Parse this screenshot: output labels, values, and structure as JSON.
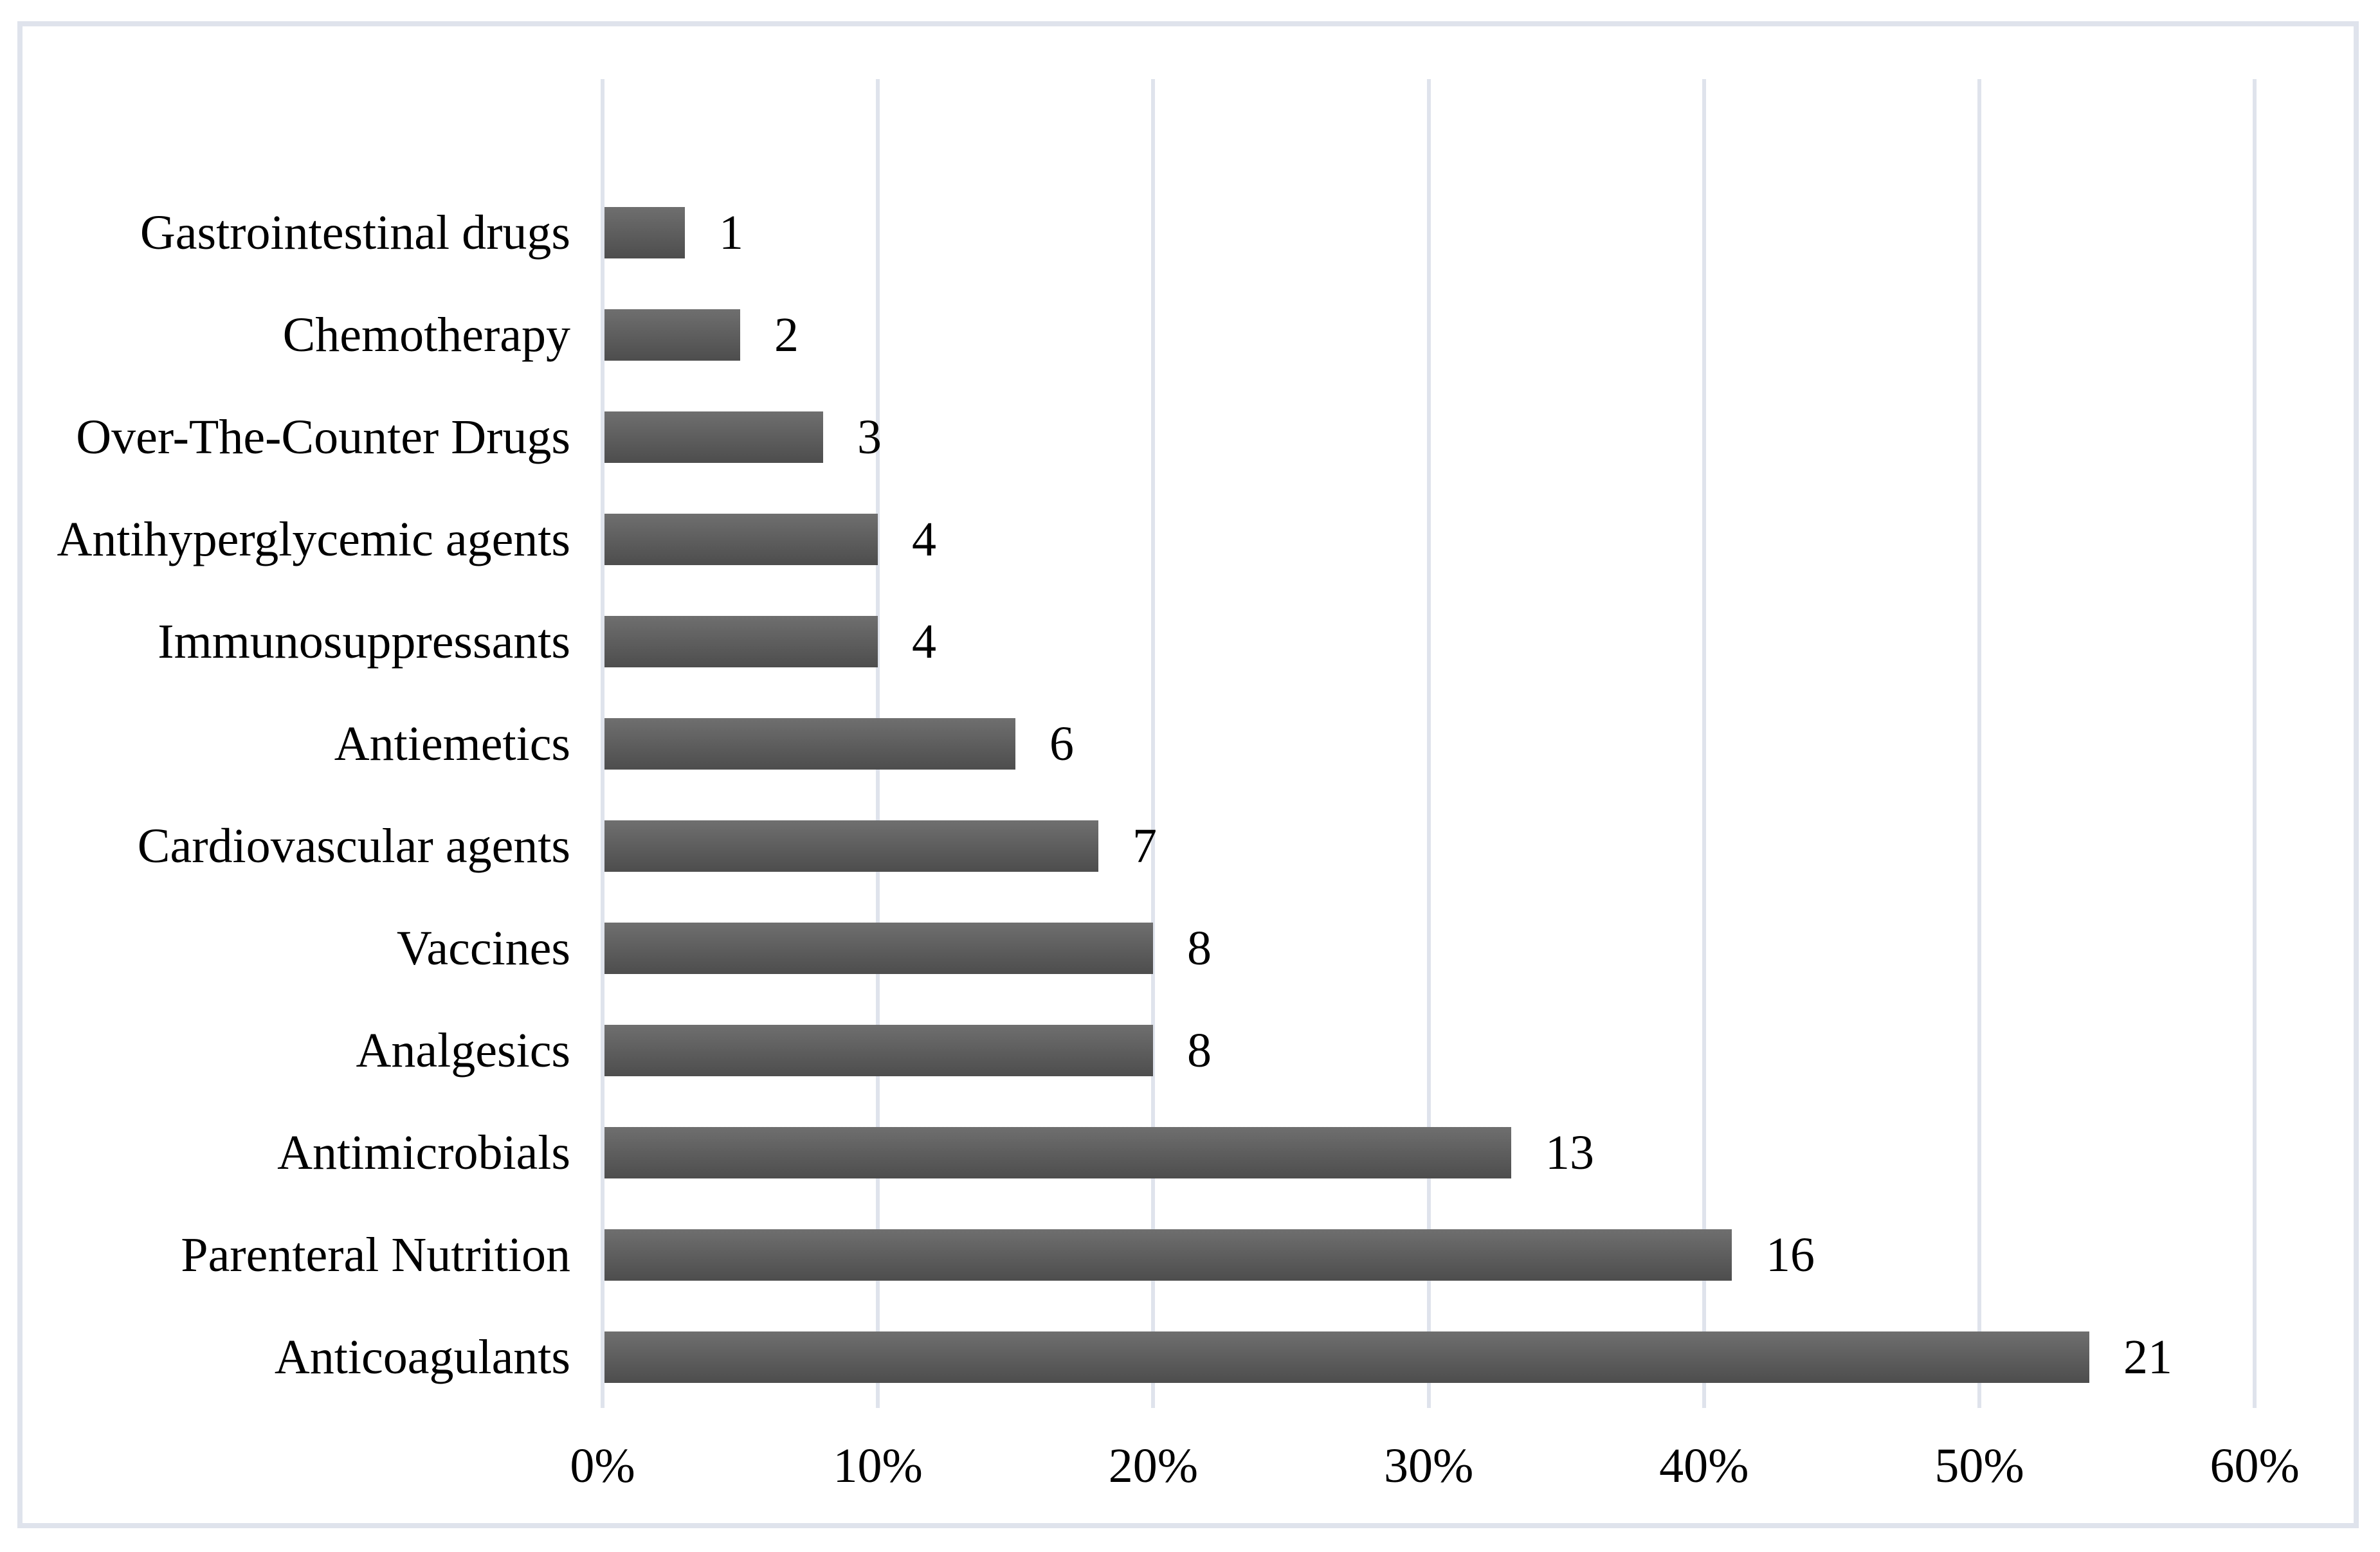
{
  "figure": {
    "background": "#ffffff",
    "frame_border_color": "#dfe3ec"
  },
  "chart_data": {
    "type": "bar",
    "orientation": "horizontal",
    "title": "",
    "xlabel": "",
    "ylabel": "",
    "xlim": [
      0,
      60
    ],
    "grid": "vertical gridlines every 10%",
    "legend": "none",
    "gridline_color": "#dfe3ec",
    "bar_color_top": "#6f6f6f",
    "bar_color_bottom": "#4d4d4d",
    "text_color": "#000000",
    "categories": [
      "Gastrointestinal drugs",
      "Chemotherapy",
      "Over-The-Counter Drugs",
      "Antihyperglycemic agents",
      "Immunosuppressants",
      "Antiemetics",
      "Cardiovascular agents",
      "Vaccines",
      "Analgesics",
      "Antimicrobials",
      "Parenteral Nutrition",
      "Anticoagulants"
    ],
    "values_percent": [
      3,
      5,
      8,
      10,
      10,
      15,
      18,
      20,
      20,
      33,
      41,
      54
    ],
    "counts": [
      1,
      2,
      3,
      4,
      4,
      6,
      7,
      8,
      8,
      13,
      16,
      21
    ],
    "data_labels": [
      "1",
      "2",
      "3",
      "4",
      "4",
      "6",
      "7",
      "8",
      "8",
      "13",
      "16",
      "21"
    ],
    "x_ticks": [
      {
        "label": "0%",
        "value": 0
      },
      {
        "label": "10%",
        "value": 10
      },
      {
        "label": "20%",
        "value": 20
      },
      {
        "label": "30%",
        "value": 30
      },
      {
        "label": "40%",
        "value": 40
      },
      {
        "label": "50%",
        "value": 50
      },
      {
        "label": "60%",
        "value": 60
      }
    ]
  }
}
